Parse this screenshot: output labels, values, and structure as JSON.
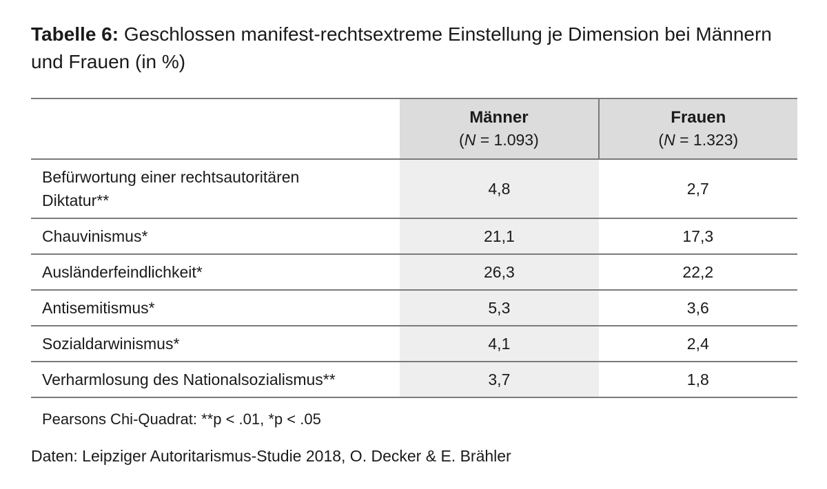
{
  "caption": {
    "label": "Tabelle 6:",
    "text": " Geschlossen manifest-rechtsextreme Einstellung je Dimension bei Männern und Frauen (in %)"
  },
  "table": {
    "columns": [
      {
        "title": "Männer",
        "n_prefix": "(",
        "n_symbol": "N",
        "n_value": " = 1.093)"
      },
      {
        "title": "Frauen",
        "n_prefix": "(",
        "n_symbol": "N",
        "n_value": " = 1.323)"
      }
    ],
    "rows": [
      {
        "label": "Befürwortung einer rechtsautoritären Diktatur**",
        "maenner": "4,8",
        "frauen": "2,7"
      },
      {
        "label": "Chauvinismus*",
        "maenner": "21,1",
        "frauen": "17,3"
      },
      {
        "label": "Ausländerfeindlichkeit*",
        "maenner": "26,3",
        "frauen": "22,2"
      },
      {
        "label": "Antisemitismus*",
        "maenner": "5,3",
        "frauen": "3,6"
      },
      {
        "label": "Sozialdarwinismus*",
        "maenner": "4,1",
        "frauen": "2,4"
      },
      {
        "label": "Verharmlosung des Nationalsozialismus**",
        "maenner": "3,7",
        "frauen": "1,8"
      }
    ]
  },
  "note": "Pearsons Chi-Quadrat: **p < .01, *p < .05",
  "source": "Daten: Leipziger Autoritarismus-Studie 2018, O. Decker & E. Brähler"
}
